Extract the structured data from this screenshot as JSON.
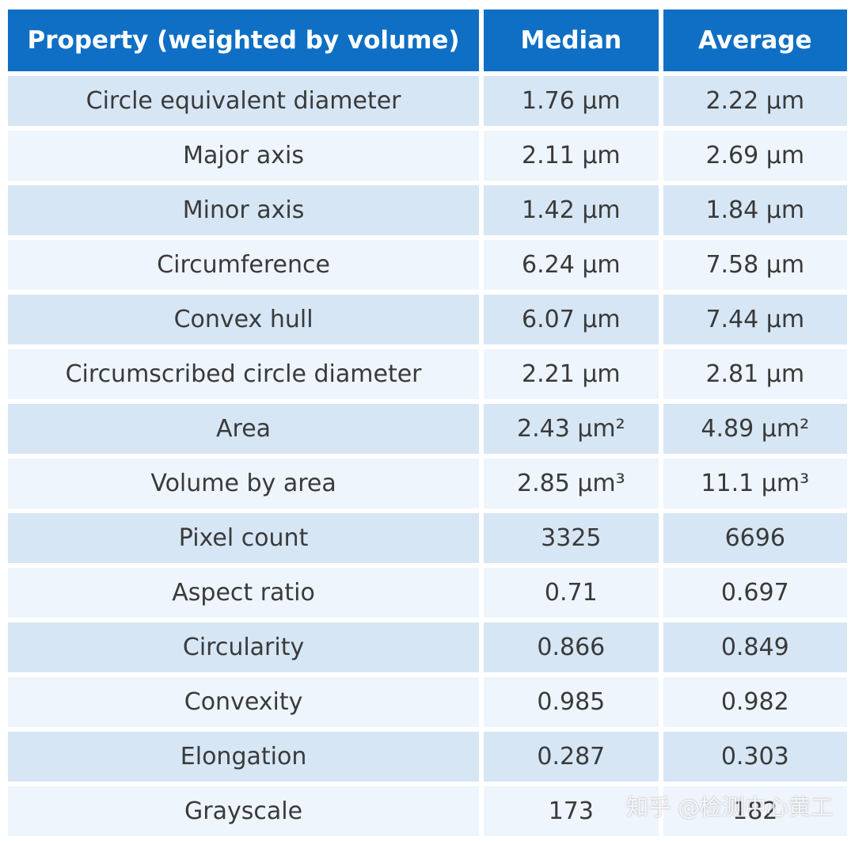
{
  "table": {
    "headers": [
      "Property (weighted by volume)",
      "Median",
      "Average"
    ],
    "rows": [
      {
        "property": "Circle equivalent diameter",
        "median": "1.76 µm",
        "average": "2.22 µm"
      },
      {
        "property": "Major axis",
        "median": "2.11 µm",
        "average": "2.69 µm"
      },
      {
        "property": "Minor axis",
        "median": "1.42 µm",
        "average": "1.84 µm"
      },
      {
        "property": "Circumference",
        "median": "6.24 µm",
        "average": "7.58 µm"
      },
      {
        "property": "Convex hull",
        "median": "6.07 µm",
        "average": "7.44 µm"
      },
      {
        "property": "Circumscribed circle diameter",
        "median": "2.21 µm",
        "average": "2.81 µm"
      },
      {
        "property": "Area",
        "median": "2.43 µm²",
        "average": "4.89 µm²"
      },
      {
        "property": "Volume by area",
        "median": "2.85 µm³",
        "average": "11.1 µm³"
      },
      {
        "property": "Pixel count",
        "median": "3325",
        "average": "6696"
      },
      {
        "property": "Aspect ratio",
        "median": "0.71",
        "average": "0.697"
      },
      {
        "property": "Circularity",
        "median": "0.866",
        "average": "0.849"
      },
      {
        "property": "Convexity",
        "median": "0.985",
        "average": "0.982"
      },
      {
        "property": "Elongation",
        "median": "0.287",
        "average": "0.303"
      },
      {
        "property": "Grayscale",
        "median": "173",
        "average": "182"
      }
    ]
  },
  "watermark": "知乎 @检测中心黄工"
}
